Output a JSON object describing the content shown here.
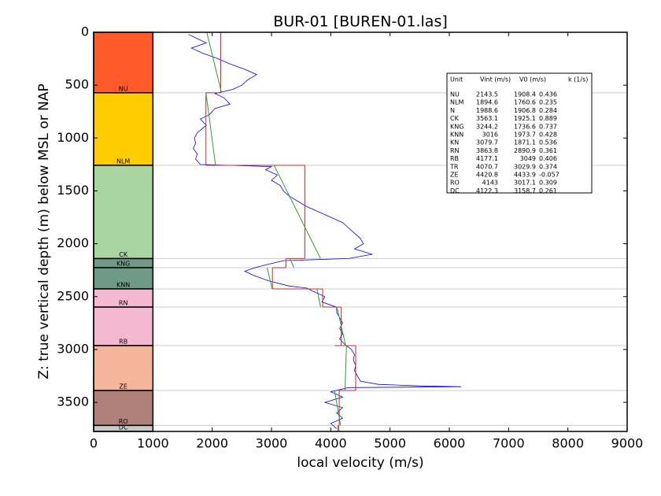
{
  "chart_data": {
    "type": "well-log",
    "title": "BUR-01 [BUREN-01.las]",
    "x_label": "local velocity (m/s)",
    "y_label": "Z: true vertical depth (m) below MSL or NAP",
    "xlim": [
      0,
      9000
    ],
    "ylim": [
      0,
      3775
    ],
    "y_inverted": true,
    "xticks": [
      0,
      1000,
      2000,
      3000,
      4000,
      5000,
      6000,
      7000,
      8000,
      9000
    ],
    "yticks": [
      0,
      500,
      1000,
      1500,
      2000,
      2500,
      3000,
      3500
    ],
    "strat_column_x": [
      0,
      1000
    ],
    "interval_color": "#d62728",
    "linear_color": "#2ca02c",
    "table_header": [
      "Unit",
      "Vint (m/s)",
      "V0 (m/s)",
      "k (1/s)"
    ],
    "units": [
      {
        "name": "NU",
        "vint": 2143.5,
        "v0": 1908.4,
        "k": 0.436,
        "top": 0,
        "base": 572,
        "color": "#ff5a2a"
      },
      {
        "name": "NLM",
        "vint": 1894.6,
        "v0": 1760.6,
        "k": 0.235,
        "top": 572,
        "base": 1258,
        "color": "#ffcc00"
      },
      {
        "name": "N",
        "vint": 1988.6,
        "v0": 1906.8,
        "k": 0.284,
        "top": 1258,
        "base": 1258
      },
      {
        "name": "CK",
        "vint": 3563.1,
        "v0": 1925.1,
        "k": 0.889,
        "top": 1258,
        "base": 2140,
        "color": "#a8d5a2"
      },
      {
        "name": "KNG",
        "vint": 3244.2,
        "v0": 1736.6,
        "k": 0.737,
        "top": 2140,
        "base": 2226,
        "color": "#6f9a88"
      },
      {
        "name": "KNN",
        "vint": 3016.0,
        "v0": 1973.7,
        "k": 0.428,
        "top": 2226,
        "base": 2427,
        "color": "#6f9a88"
      },
      {
        "name": "KN",
        "vint": 3079.7,
        "v0": 1871.1,
        "k": 0.536,
        "top": 2427,
        "base": 2427
      },
      {
        "name": "RN",
        "vint": 3863.8,
        "v0": 2890.9,
        "k": 0.361,
        "top": 2427,
        "base": 2599,
        "color": "#f4b8d0"
      },
      {
        "name": "RB",
        "vint": 4177.1,
        "v0": 3049.0,
        "k": 0.406,
        "top": 2599,
        "base": 2963,
        "color": "#f4b8d0"
      },
      {
        "name": "TR",
        "vint": 4070.7,
        "v0": 3029.9,
        "k": 0.374,
        "top": 2963,
        "base": 2963
      },
      {
        "name": "ZE",
        "vint": 4420.8,
        "v0": 4433.9,
        "k": -0.057,
        "top": 2963,
        "base": 3388,
        "color": "#f4b59b"
      },
      {
        "name": "RO",
        "vint": 4143.0,
        "v0": 3017.1,
        "k": 0.309,
        "top": 3388,
        "base": 3718,
        "color": "#b0807a"
      },
      {
        "name": "DC",
        "vint": 4122.3,
        "v0": 3158.7,
        "k": 0.261,
        "top": 3718,
        "base": 3775,
        "color": "#c8c8c8"
      }
    ],
    "log": {
      "color": "#0000ff",
      "depth": [
        20,
        60,
        100,
        150,
        200,
        250,
        300,
        350,
        400,
        450,
        500,
        540,
        580,
        620,
        680,
        720,
        780,
        820,
        880,
        950,
        1000,
        1050,
        1100,
        1150,
        1200,
        1250,
        1270,
        1300,
        1350,
        1400,
        1450,
        1500,
        1550,
        1600,
        1650,
        1700,
        1750,
        1800,
        1850,
        1900,
        1950,
        2000,
        2050,
        2100,
        2140,
        2160,
        2200,
        2230,
        2260,
        2300,
        2350,
        2400,
        2420,
        2450,
        2500,
        2550,
        2600,
        2650,
        2700,
        2750,
        2800,
        2850,
        2900,
        2960,
        3000,
        3050,
        3100,
        3150,
        3200,
        3250,
        3300,
        3330,
        3345,
        3352,
        3360,
        3400,
        3450,
        3500,
        3550,
        3600,
        3650,
        3700,
        3750
      ],
      "velocity": [
        1600,
        1750,
        1900,
        1650,
        1850,
        2100,
        2300,
        2550,
        2750,
        2600,
        2500,
        2350,
        2050,
        2200,
        2300,
        2050,
        1950,
        1800,
        1900,
        1750,
        1700,
        1720,
        1680,
        1750,
        1720,
        1800,
        3000,
        2900,
        3100,
        3000,
        3150,
        3200,
        3300,
        3450,
        3600,
        3800,
        4000,
        4200,
        4300,
        4400,
        4500,
        4550,
        4400,
        4700,
        4300,
        3200,
        2900,
        2700,
        2550,
        2700,
        2950,
        3300,
        3600,
        3700,
        3900,
        3850,
        4100,
        4100,
        4150,
        4200,
        4150,
        4200,
        4150,
        4250,
        4350,
        4400,
        4380,
        4420,
        4400,
        4450,
        4500,
        4800,
        5500,
        6200,
        4300,
        4000,
        4200,
        3900,
        4200,
        4100,
        4200,
        4000,
        4100
      ]
    }
  }
}
